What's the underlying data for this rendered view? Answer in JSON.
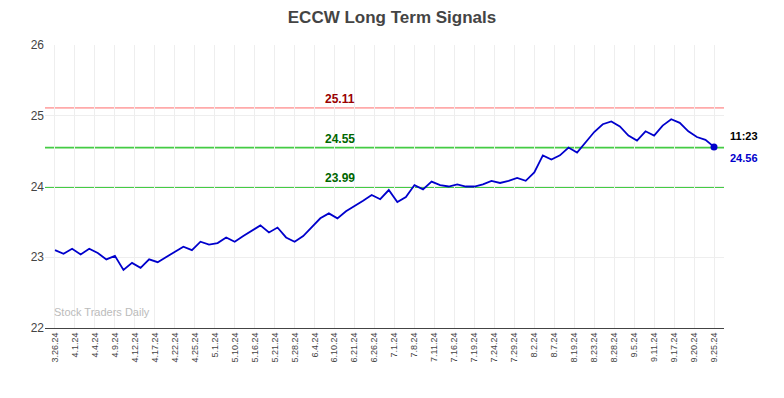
{
  "chart_data": {
    "type": "line",
    "title": "ECCW Long Term Signals",
    "x": [
      0,
      0.428571,
      0.857143,
      1.285714,
      1.714286,
      2.142857,
      2.571429,
      3,
      3.428571,
      3.857143,
      4.285714,
      4.714286,
      5.142857,
      5.571429,
      6,
      6.428571,
      6.857143,
      7.285714,
      7.714286,
      8.142857,
      8.571429,
      9,
      9.428571,
      9.857143,
      10.285714,
      10.714286,
      11.142857,
      11.571429,
      12,
      12.428571,
      12.857143,
      13.285714,
      13.714286,
      14.142857,
      14.571429,
      15,
      15.428571,
      15.857143,
      16.285714,
      16.714286,
      17.142857,
      17.571429,
      18,
      18.428571,
      18.857143,
      19.285714,
      19.714286,
      20.142857,
      20.571429,
      21,
      21.428571,
      21.857143,
      22.285714,
      22.714286,
      23.142857,
      23.571429,
      24,
      24.428571,
      24.857143,
      25.285714,
      25.714286,
      26.142857,
      26.571429,
      27,
      27.428571,
      27.857143,
      28.285714,
      28.714286,
      29.142857,
      29.571429,
      30,
      30.428571,
      30.857143,
      31.285714,
      31.714286,
      32.142857,
      32.571429,
      33
    ],
    "values": [
      23.1,
      23.05,
      23.12,
      23.04,
      23.12,
      23.06,
      22.97,
      23.02,
      22.82,
      22.92,
      22.85,
      22.97,
      22.93,
      23.0,
      23.07,
      23.15,
      23.1,
      23.22,
      23.18,
      23.2,
      23.28,
      23.22,
      23.3,
      23.38,
      23.45,
      23.35,
      23.42,
      23.28,
      23.22,
      23.3,
      23.42,
      23.55,
      23.62,
      23.55,
      23.65,
      23.72,
      23.8,
      23.88,
      23.82,
      23.95,
      23.78,
      23.85,
      24.02,
      23.96,
      24.07,
      24.02,
      24.0,
      24.03,
      24.0,
      24.0,
      24.03,
      24.08,
      24.05,
      24.08,
      24.12,
      24.08,
      24.2,
      24.44,
      24.38,
      24.44,
      24.55,
      24.48,
      24.62,
      24.77,
      24.88,
      24.92,
      24.85,
      24.72,
      24.65,
      24.78,
      24.72,
      24.86,
      24.95,
      24.9,
      24.78,
      24.7,
      24.66,
      24.56
    ],
    "color": "#0000cc",
    "xlim": [
      -0.5,
      33.5
    ],
    "xticks": [
      {
        "value": 0,
        "label": "3.26.24"
      },
      {
        "value": 1,
        "label": "4.1.24"
      },
      {
        "value": 2,
        "label": "4.4.24"
      },
      {
        "value": 3,
        "label": "4.9.24"
      },
      {
        "value": 4,
        "label": "4.12.24"
      },
      {
        "value": 5,
        "label": "4.17.24"
      },
      {
        "value": 6,
        "label": "4.22.24"
      },
      {
        "value": 7,
        "label": "4.25.24"
      },
      {
        "value": 8,
        "label": "5.1.24"
      },
      {
        "value": 9,
        "label": "5.10.24"
      },
      {
        "value": 10,
        "label": "5.16.24"
      },
      {
        "value": 11,
        "label": "5.21.24"
      },
      {
        "value": 12,
        "label": "5.28.24"
      },
      {
        "value": 13,
        "label": "6.4.24"
      },
      {
        "value": 14,
        "label": "6.10.24"
      },
      {
        "value": 15,
        "label": "6.21.24"
      },
      {
        "value": 16,
        "label": "6.26.24"
      },
      {
        "value": 17,
        "label": "7.1.24"
      },
      {
        "value": 18,
        "label": "7.8.24"
      },
      {
        "value": 19,
        "label": "7.11.24"
      },
      {
        "value": 20,
        "label": "7.16.24"
      },
      {
        "value": 21,
        "label": "7.19.24"
      },
      {
        "value": 22,
        "label": "7.24.24"
      },
      {
        "value": 23,
        "label": "7.29.24"
      },
      {
        "value": 24,
        "label": "8.2.24"
      },
      {
        "value": 25,
        "label": "8.7.24"
      },
      {
        "value": 26,
        "label": "8.19.24"
      },
      {
        "value": 27,
        "label": "8.23.24"
      },
      {
        "value": 28,
        "label": "8.28.24"
      },
      {
        "value": 29,
        "label": "9.5.24"
      },
      {
        "value": 30,
        "label": "9.11.24"
      },
      {
        "value": 31,
        "label": "9.17.24"
      },
      {
        "value": 32,
        "label": "9.20.24"
      },
      {
        "value": 33,
        "label": "9.25.24"
      }
    ],
    "ylim": [
      22,
      26
    ],
    "yticks": [
      22,
      23,
      24,
      25,
      26
    ],
    "grid": true,
    "hlines": [
      {
        "value": 25.11,
        "color": "#ffaaaa",
        "label": "25.11",
        "label_color": "#990000"
      },
      {
        "value": 24.55,
        "color": "#44cc44",
        "label": "24.55",
        "label_color": "#006600"
      },
      {
        "value": 23.99,
        "color": "#44cc44",
        "label": "23.99",
        "label_color": "#006600"
      }
    ],
    "annotations": [
      {
        "text": "11:23",
        "color": "#000000"
      },
      {
        "text": "24.56",
        "color": "#0000cc"
      }
    ],
    "watermark": {
      "text": "Stock Traders Daily",
      "color": "#bbbbbb"
    }
  }
}
